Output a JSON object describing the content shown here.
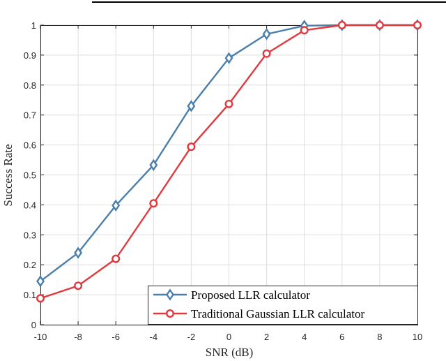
{
  "chart_data": {
    "type": "line",
    "title": "",
    "xlabel": "SNR (dB)",
    "ylabel": "Success Rate",
    "x": [
      -10,
      -8,
      -6,
      -4,
      -2,
      0,
      2,
      4,
      6,
      8,
      10
    ],
    "xlim": [
      -10,
      10
    ],
    "ylim": [
      0,
      1
    ],
    "xticks": [
      "-10",
      "-8",
      "-6",
      "-4",
      "-2",
      "0",
      "2",
      "4",
      "6",
      "8",
      "10"
    ],
    "yticks": [
      "0",
      "0.1",
      "0.2",
      "0.3",
      "0.4",
      "0.5",
      "0.6",
      "0.7",
      "0.8",
      "0.9",
      "1"
    ],
    "grid": true,
    "legend_position": "bottom-right",
    "series": [
      {
        "name": "Proposed LLR calculator",
        "color": "#4a7eab",
        "marker": "diamond",
        "values": [
          0.145,
          0.24,
          0.398,
          0.533,
          0.73,
          0.89,
          0.97,
          0.998,
          1.0,
          1.0,
          1.0
        ]
      },
      {
        "name": "Traditional Gaussian LLR calculator",
        "color": "#e0393e",
        "marker": "circle",
        "values": [
          0.088,
          0.13,
          0.22,
          0.405,
          0.594,
          0.737,
          0.905,
          0.983,
          1.0,
          1.0,
          1.0
        ]
      }
    ]
  }
}
